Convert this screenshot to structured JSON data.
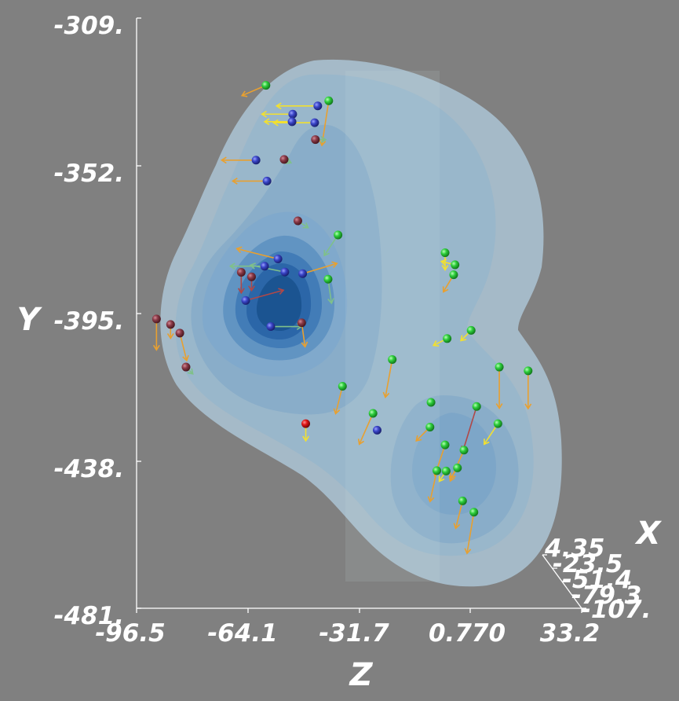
{
  "chart_data": {
    "type": "3d-scatter-vector-field",
    "axes": {
      "x": {
        "title": "X",
        "ticks": [
          "4.35",
          "-23.5",
          "-51.4",
          "-79.3",
          "-107."
        ]
      },
      "y": {
        "title": "Y",
        "ticks": [
          "-309.",
          "-352.",
          "-395.",
          "-438.",
          "-481."
        ],
        "range": [
          -481,
          -309
        ]
      },
      "z": {
        "title": "Z",
        "ticks": [
          "-96.5",
          "-64.1",
          "-31.7",
          "0.770",
          "33.2"
        ],
        "range": [
          -96.5,
          33.2
        ]
      }
    },
    "isosurface_colors": [
      "#9fb9c9",
      "#8eb1ca",
      "#79a7c9",
      "#5e93c0",
      "#3f7ab5",
      "#2a66a8",
      "#1a538f"
    ],
    "glyph_colors": {
      "green": "#2ecf3c",
      "blue": "#3a45c8",
      "dark_red": "#8a3a48",
      "red": "#e01515",
      "arrow_orange": "#e8a030",
      "arrow_yellow": "#f2e030"
    },
    "points": [
      {
        "z": -58.8,
        "y": -328.6,
        "c": "green",
        "dz": -7,
        "dy": -3,
        "ac": "orange"
      },
      {
        "z": -40.5,
        "y": -333.1,
        "c": "green",
        "dz": -2,
        "dy": -13,
        "ac": "orange"
      },
      {
        "z": -43.7,
        "y": -334.6,
        "c": "blue",
        "dz": -12,
        "dy": 0,
        "ac": "yellow"
      },
      {
        "z": -51.0,
        "y": -337.0,
        "c": "blue",
        "dz": -9,
        "dy": 0,
        "ac": "yellow"
      },
      {
        "z": -51.2,
        "y": -339.2,
        "c": "blue",
        "dz": -8,
        "dy": 0,
        "ac": "yellow"
      },
      {
        "z": -44.6,
        "y": -339.5,
        "c": "blue",
        "dz": -12,
        "dy": 0,
        "ac": "yellow"
      },
      {
        "z": -44.4,
        "y": -344.4,
        "c": "dark_red",
        "dz": 3,
        "dy": 0,
        "ac": "green"
      },
      {
        "z": -61.7,
        "y": -350.4,
        "c": "blue",
        "dz": -10,
        "dy": 0,
        "ac": "orange"
      },
      {
        "z": -53.5,
        "y": -350.2,
        "c": "dark_red",
        "dz": 2,
        "dy": -1,
        "ac": "green"
      },
      {
        "z": -58.5,
        "y": -356.5,
        "c": "blue",
        "dz": -10,
        "dy": 0,
        "ac": "orange"
      },
      {
        "z": -49.5,
        "y": -368.1,
        "c": "dark_red",
        "dz": 3,
        "dy": -2,
        "ac": "green"
      },
      {
        "z": -37.8,
        "y": -372.2,
        "c": "green",
        "dz": -4,
        "dy": -6,
        "ac": "green"
      },
      {
        "z": -55.3,
        "y": -379.2,
        "c": "blue",
        "dz": -12,
        "dy": 3,
        "ac": "orange"
      },
      {
        "z": -59.2,
        "y": -381.3,
        "c": "blue",
        "dz": -10,
        "dy": 0,
        "ac": "green"
      },
      {
        "z": -53.3,
        "y": -383.0,
        "c": "blue",
        "dz": -10,
        "dy": 2,
        "ac": "green"
      },
      {
        "z": -66.0,
        "y": -383.1,
        "c": "dark_red",
        "dz": 0,
        "dy": -6,
        "ac": "red"
      },
      {
        "z": -63.0,
        "y": -384.4,
        "c": "dark_red",
        "dz": 0,
        "dy": -4,
        "ac": "red"
      },
      {
        "z": -48.1,
        "y": -383.5,
        "c": "blue",
        "dz": 10,
        "dy": 3,
        "ac": "orange"
      },
      {
        "z": -40.7,
        "y": -385.1,
        "c": "green",
        "dz": 1,
        "dy": -7,
        "ac": "green"
      },
      {
        "z": -64.7,
        "y": -391.3,
        "c": "blue",
        "dz": 11,
        "dy": 3,
        "ac": "red"
      },
      {
        "z": -90.7,
        "y": -396.7,
        "c": "dark_red",
        "dz": 0,
        "dy": -9,
        "ac": "orange"
      },
      {
        "z": -86.6,
        "y": -398.3,
        "c": "dark_red",
        "dz": 0,
        "dy": -4,
        "ac": "orange"
      },
      {
        "z": -83.9,
        "y": -400.8,
        "c": "dark_red",
        "dz": 2,
        "dy": -8,
        "ac": "orange"
      },
      {
        "z": -57.4,
        "y": -398.9,
        "c": "blue",
        "dz": 9,
        "dy": 0,
        "ac": "green"
      },
      {
        "z": -48.4,
        "y": -397.8,
        "c": "dark_red",
        "dz": 1,
        "dy": -7,
        "ac": "orange"
      },
      {
        "z": -82.1,
        "y": -410.7,
        "c": "dark_red",
        "dz": 2,
        "dy": -2,
        "ac": "green"
      },
      {
        "z": -36.5,
        "y": -416.3,
        "c": "green",
        "dz": -2,
        "dy": -8,
        "ac": "orange"
      },
      {
        "z": -22.0,
        "y": -408.5,
        "c": "green",
        "dz": -2,
        "dy": -11,
        "ac": "orange"
      },
      {
        "z": -6.0,
        "y": -402.4,
        "c": "green",
        "dz": -4,
        "dy": -2,
        "ac": "yellow"
      },
      {
        "z": 9.2,
        "y": -410.7,
        "c": "green",
        "dz": 0,
        "dy": -12,
        "ac": "orange"
      },
      {
        "z": 17.6,
        "y": -411.8,
        "c": "green",
        "dz": 0,
        "dy": -11,
        "ac": "orange"
      },
      {
        "z": -27.6,
        "y": -424.2,
        "c": "green",
        "dz": -4,
        "dy": -9,
        "ac": "orange"
      },
      {
        "z": -26.4,
        "y": -429.1,
        "c": "blue",
        "dz": 0,
        "dy": 0,
        "ac": "orange"
      },
      {
        "z": -11.0,
        "y": -428.2,
        "c": "green",
        "dz": -4,
        "dy": -4,
        "ac": "orange"
      },
      {
        "z": 2.6,
        "y": -422.2,
        "c": "green",
        "dz": -4,
        "dy": -13,
        "ac": "red"
      },
      {
        "z": 8.8,
        "y": -427.2,
        "c": "green",
        "dz": -4,
        "dy": -6,
        "ac": "yellow"
      },
      {
        "z": -10.7,
        "y": -421.0,
        "c": "green",
        "dz": 0,
        "dy": 0,
        "ac": "orange"
      },
      {
        "z": -6.6,
        "y": -433.4,
        "c": "green",
        "dz": -3,
        "dy": -9,
        "ac": "orange"
      },
      {
        "z": -1.1,
        "y": -434.9,
        "c": "green",
        "dz": -4,
        "dy": -9,
        "ac": "orange"
      },
      {
        "z": -9.0,
        "y": -440.9,
        "c": "green",
        "dz": -2,
        "dy": -9,
        "ac": "orange"
      },
      {
        "z": -6.3,
        "y": -441.0,
        "c": "green",
        "dz": -2,
        "dy": -3,
        "ac": "yellow"
      },
      {
        "z": -3.0,
        "y": -440.1,
        "c": "green",
        "dz": -2,
        "dy": -3,
        "ac": "orange"
      },
      {
        "z": -1.5,
        "y": -449.7,
        "c": "green",
        "dz": -2,
        "dy": -8,
        "ac": "orange"
      },
      {
        "z": 1.8,
        "y": -453.0,
        "c": "green",
        "dz": -2,
        "dy": -12,
        "ac": "orange"
      },
      {
        "z": -6.6,
        "y": -377.4,
        "c": "green",
        "dz": 0,
        "dy": -5,
        "ac": "yellow"
      },
      {
        "z": -3.7,
        "y": -380.9,
        "c": "green",
        "dz": -4,
        "dy": 1,
        "ac": "yellow"
      },
      {
        "z": -4.1,
        "y": -383.8,
        "c": "green",
        "dz": -3,
        "dy": -5,
        "ac": "orange"
      },
      {
        "z": 1.0,
        "y": -400.0,
        "c": "green",
        "dz": -3,
        "dy": -3,
        "ac": "yellow"
      },
      {
        "z": -47.2,
        "y": -427.2,
        "c": "red",
        "dz": 0,
        "dy": -5,
        "ac": "yellow"
      }
    ]
  }
}
